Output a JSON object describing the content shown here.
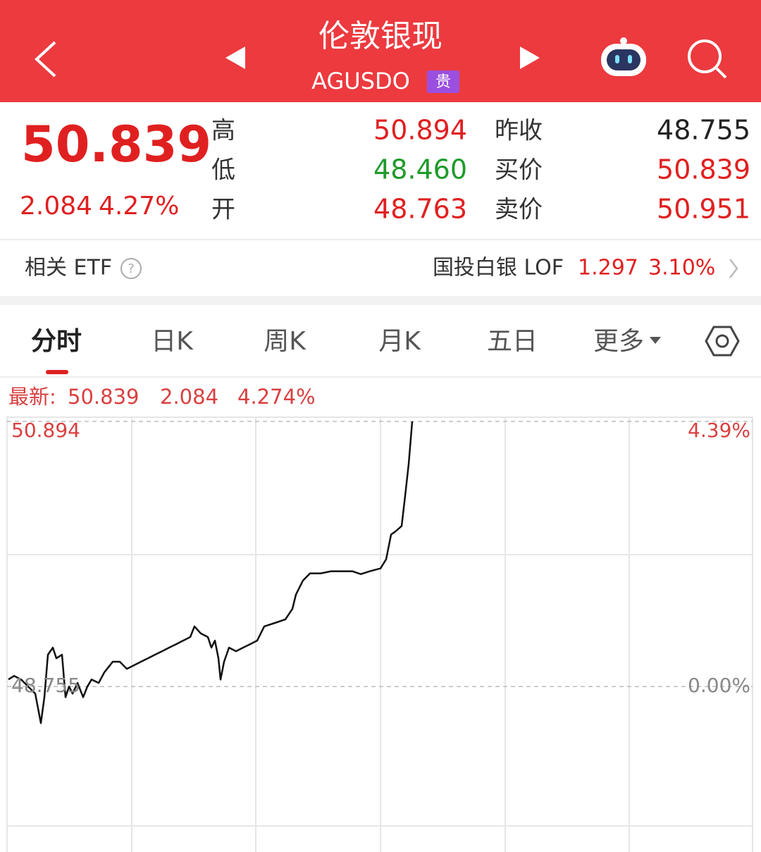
{
  "header": {
    "title": "伦敦银现",
    "code": "AGUSDO",
    "badge": "贵"
  },
  "quote": {
    "price": "50.839",
    "change": "2.084",
    "change_pct": "4.27%",
    "stats": [
      {
        "label": "高",
        "value": "50.894",
        "color": "#e02020"
      },
      {
        "label": "低",
        "value": "48.460",
        "color": "#1f9a2b"
      },
      {
        "label": "开",
        "value": "48.763",
        "color": "#e02020"
      },
      {
        "label": "昨收",
        "value": "48.755",
        "color": "#222222"
      },
      {
        "label": "买价",
        "value": "50.839",
        "color": "#e02020"
      },
      {
        "label": "卖价",
        "value": "50.951",
        "color": "#e02020"
      }
    ]
  },
  "etf": {
    "label": "相关 ETF",
    "name": "国投白银 LOF",
    "price": "1.297",
    "change_pct": "3.10%"
  },
  "tabs": [
    "分时",
    "日K",
    "周K",
    "月K",
    "五日",
    "更多"
  ],
  "latest": {
    "label": "最新:",
    "price": "50.839",
    "change": "2.084",
    "change_pct": "4.274%"
  },
  "chart_data": {
    "type": "line",
    "color": "#111111",
    "x": [
      0,
      8,
      18,
      28,
      38,
      46,
      51,
      56,
      63,
      68,
      76,
      81,
      86,
      91,
      98,
      106,
      112,
      118,
      128,
      136,
      148,
      158,
      168,
      178,
      188,
      198,
      208,
      218,
      228,
      238,
      248,
      258,
      264,
      273,
      283,
      288,
      293,
      298,
      301,
      306,
      313,
      323,
      333,
      343,
      353,
      363,
      378,
      393,
      403,
      408,
      418,
      428,
      443,
      458,
      473,
      488,
      500,
      513,
      528,
      536,
      543,
      550,
      558,
      563,
      568,
      573
    ],
    "values": [
      48.812,
      48.841,
      48.812,
      48.755,
      48.698,
      48.46,
      48.669,
      49.012,
      49.069,
      48.983,
      49.012,
      48.669,
      48.755,
      48.698,
      48.784,
      48.669,
      48.755,
      48.812,
      48.784,
      48.869,
      48.955,
      48.955,
      48.898,
      48.926,
      48.955,
      48.983,
      49.012,
      49.04,
      49.069,
      49.097,
      49.126,
      49.154,
      49.24,
      49.183,
      49.154,
      49.069,
      49.126,
      48.983,
      48.812,
      48.955,
      49.069,
      49.04,
      49.069,
      49.097,
      49.126,
      49.24,
      49.268,
      49.297,
      49.382,
      49.497,
      49.611,
      49.668,
      49.668,
      49.685,
      49.685,
      49.685,
      49.662,
      49.685,
      49.708,
      49.782,
      49.981,
      50.01,
      50.05,
      50.295,
      50.552,
      50.894
    ],
    "xlim": [
      0,
      1056
    ],
    "ylim": [
      47.42,
      50.894
    ],
    "yticks": [
      50.894,
      48.755
    ],
    "y2lim": [
      -2.74,
      4.39
    ],
    "y2ticks": [
      {
        "value": 4.39,
        "label": "4.39%"
      },
      {
        "value": 0,
        "label": "0.00%"
      }
    ]
  }
}
